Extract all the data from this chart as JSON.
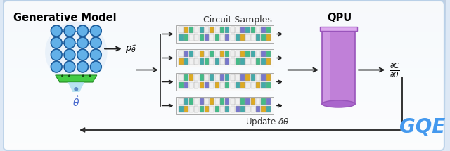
{
  "fig_width": 6.4,
  "fig_height": 2.15,
  "dpi": 100,
  "bg_gradient_top": "#ddeaf8",
  "bg_gradient_bot": "#eef4fc",
  "outer_box_facecolor": "#ffffff",
  "outer_box_edgecolor": "#b8d0e8",
  "title_generative": "Generative Model",
  "title_circuit": "Circuit Samples",
  "title_qpu": "QPU",
  "label_gqe": "GQE",
  "label_p_theta": "$p_{\\vec{\\theta}}$",
  "label_theta": "$\\vec{\\theta}$",
  "label_update": "Update $\\delta\\theta$",
  "label_gradient": "$\\frac{\\partial C}{\\partial\\theta}$",
  "node_color": "#62b0e8",
  "node_edge_color": "#1a5a9a",
  "node_line_color": "#3377bb",
  "platform_green": "#44cc44",
  "platform_dark_green": "#228822",
  "platform_glow": "#aaddee",
  "tube_body": "#c080d8",
  "tube_top_rim": "#ddaaee",
  "tube_shadow": "#aa60c0",
  "tube_rim_color": "#9955bb",
  "arrow_color": "#222222",
  "gqe_color": "#4499ee",
  "update_color": "#333333",
  "circuit_bg": "#f8f8f8",
  "circuit_border": "#aaaaaa",
  "cell_green": "#44bb88",
  "cell_yellow": "#ddaa22",
  "cell_purple": "#7777cc",
  "cell_teal": "#44aaaa",
  "cell_empty": "#e8e8e8",
  "fan_bracket_color": "#222222"
}
